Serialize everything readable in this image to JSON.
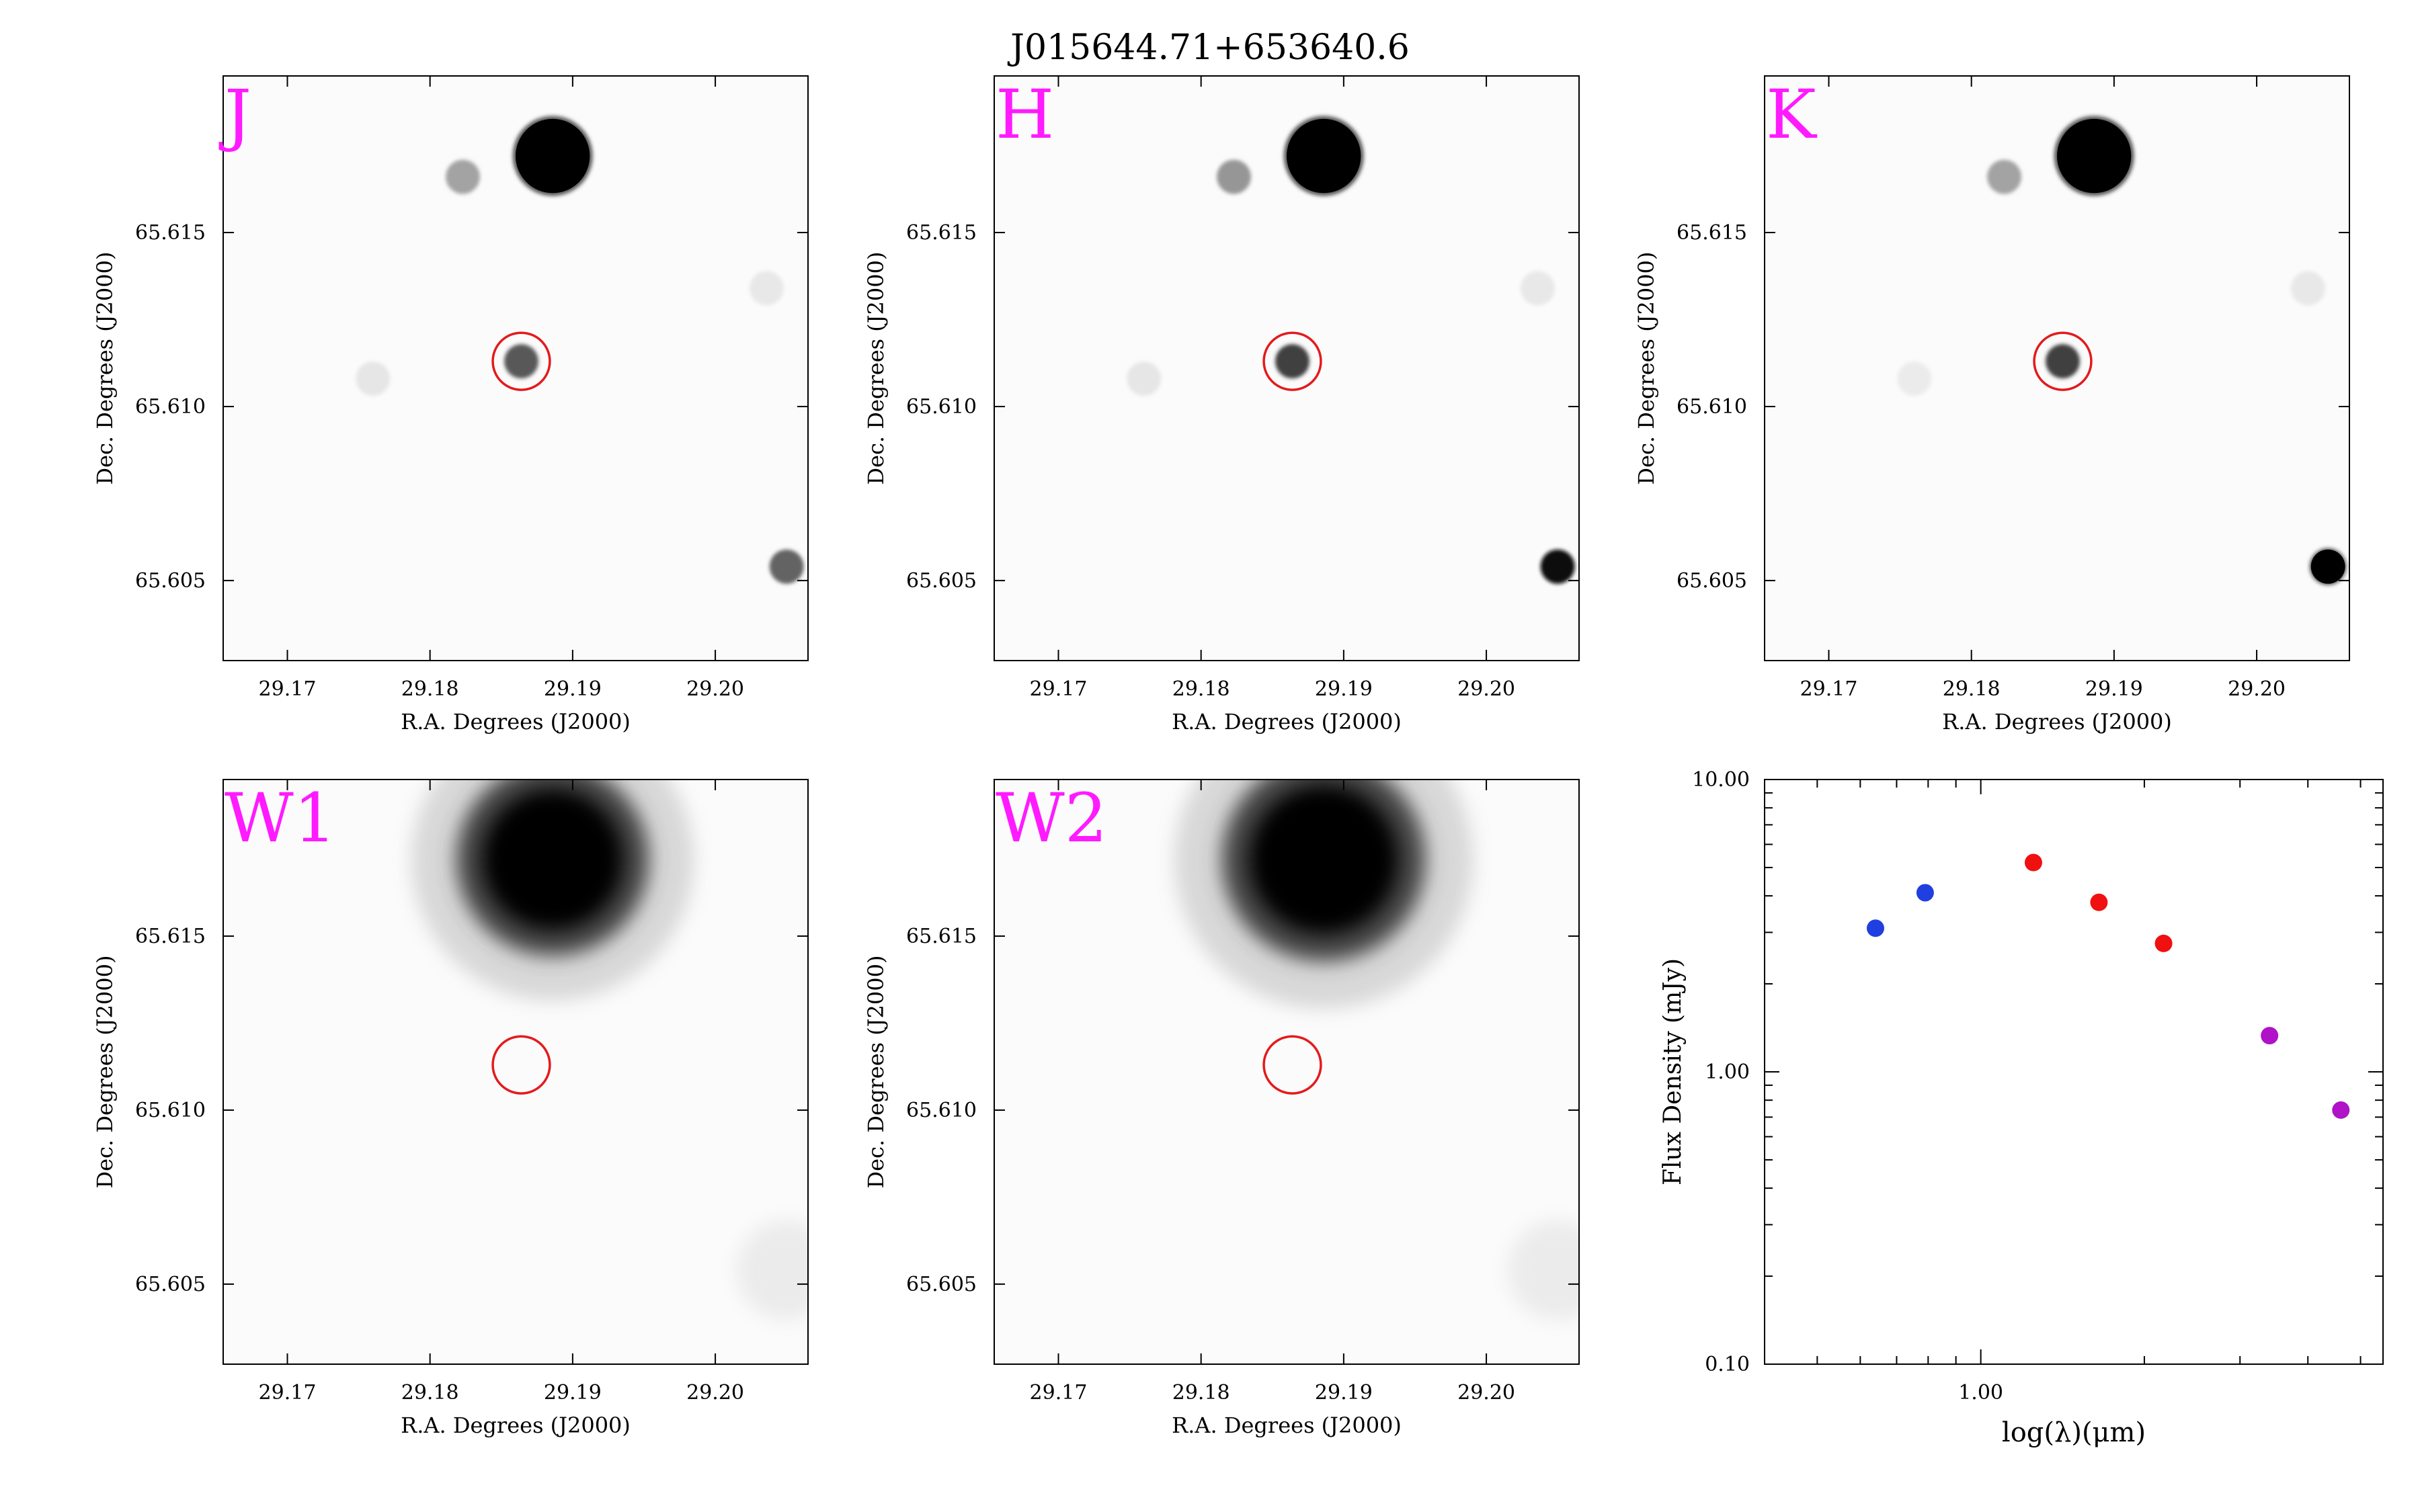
{
  "figure": {
    "title": "J015644.71+653640.6"
  },
  "colors": {
    "band_label": "#ff1aff",
    "circle": "#e41a1c",
    "sed_blue": "#1f3fe0",
    "sed_red": "#f01010",
    "sed_purple": "#b012c8"
  },
  "chart_data": [
    {
      "type": "heatmap",
      "band": "J",
      "xlabel": "R.A. Degrees (J2000)",
      "ylabel": "Dec. Degrees (J2000)",
      "xlim": [
        29.1655,
        29.2065
      ],
      "ylim": [
        65.6027,
        65.6195
      ],
      "xticks": [
        "29.17",
        "29.18",
        "29.19",
        "29.20"
      ],
      "yticks": [
        "65.605",
        "65.610",
        "65.615"
      ],
      "target": {
        "ra": 29.1864,
        "dec": 65.6113,
        "radius_deg": 0.002
      },
      "sources": [
        {
          "ra": 29.1886,
          "dec": 65.6172,
          "size": 0.0026,
          "intensity": 1.0
        },
        {
          "ra": 29.1823,
          "dec": 65.6166,
          "size": 0.0012,
          "intensity": 0.35
        },
        {
          "ra": 29.1864,
          "dec": 65.6113,
          "size": 0.0012,
          "intensity": 0.65
        },
        {
          "ra": 29.205,
          "dec": 65.6054,
          "size": 0.0012,
          "intensity": 0.6
        },
        {
          "ra": 29.176,
          "dec": 65.6108,
          "size": 0.0012,
          "intensity": 0.08
        },
        {
          "ra": 29.2036,
          "dec": 65.6134,
          "size": 0.0012,
          "intensity": 0.07
        }
      ]
    },
    {
      "type": "heatmap",
      "band": "H",
      "xlabel": "R.A. Degrees (J2000)",
      "ylabel": "Dec. Degrees (J2000)",
      "xlim": [
        29.1655,
        29.2065
      ],
      "ylim": [
        65.6027,
        65.6195
      ],
      "xticks": [
        "29.17",
        "29.18",
        "29.19",
        "29.20"
      ],
      "yticks": [
        "65.605",
        "65.610",
        "65.615"
      ],
      "target": {
        "ra": 29.1864,
        "dec": 65.6113,
        "radius_deg": 0.002
      },
      "sources": [
        {
          "ra": 29.1886,
          "dec": 65.6172,
          "size": 0.0026,
          "intensity": 1.0
        },
        {
          "ra": 29.1823,
          "dec": 65.6166,
          "size": 0.0012,
          "intensity": 0.4
        },
        {
          "ra": 29.1864,
          "dec": 65.6113,
          "size": 0.0012,
          "intensity": 0.75
        },
        {
          "ra": 29.205,
          "dec": 65.6054,
          "size": 0.0012,
          "intensity": 0.95
        },
        {
          "ra": 29.176,
          "dec": 65.6108,
          "size": 0.0012,
          "intensity": 0.08
        },
        {
          "ra": 29.2036,
          "dec": 65.6134,
          "size": 0.0012,
          "intensity": 0.07
        }
      ]
    },
    {
      "type": "heatmap",
      "band": "K",
      "xlabel": "R.A. Degrees (J2000)",
      "ylabel": "Dec. Degrees (J2000)",
      "xlim": [
        29.1655,
        29.2065
      ],
      "ylim": [
        65.6027,
        65.6195
      ],
      "xticks": [
        "29.17",
        "29.18",
        "29.19",
        "29.20"
      ],
      "yticks": [
        "65.605",
        "65.610",
        "65.615"
      ],
      "target": {
        "ra": 29.1864,
        "dec": 65.6113,
        "radius_deg": 0.002
      },
      "sources": [
        {
          "ra": 29.1886,
          "dec": 65.6172,
          "size": 0.0026,
          "intensity": 1.0
        },
        {
          "ra": 29.1823,
          "dec": 65.6166,
          "size": 0.0012,
          "intensity": 0.35
        },
        {
          "ra": 29.1864,
          "dec": 65.6113,
          "size": 0.0012,
          "intensity": 0.75
        },
        {
          "ra": 29.205,
          "dec": 65.6054,
          "size": 0.0012,
          "intensity": 1.0
        },
        {
          "ra": 29.176,
          "dec": 65.6108,
          "size": 0.0012,
          "intensity": 0.06
        },
        {
          "ra": 29.2036,
          "dec": 65.6134,
          "size": 0.0012,
          "intensity": 0.07
        }
      ]
    },
    {
      "type": "heatmap",
      "band": "W1",
      "xlabel": "R.A. Degrees (J2000)",
      "ylabel": "Dec. Degrees (J2000)",
      "xlim": [
        29.1655,
        29.2065
      ],
      "ylim": [
        65.6027,
        65.6195
      ],
      "xticks": [
        "29.17",
        "29.18",
        "29.19",
        "29.20"
      ],
      "yticks": [
        "65.605",
        "65.610",
        "65.615"
      ],
      "target": {
        "ra": 29.1864,
        "dec": 65.6113,
        "radius_deg": 0.002
      },
      "sources": [
        {
          "ra": 29.1886,
          "dec": 65.6172,
          "size": 0.0052,
          "intensity": 1.0
        },
        {
          "ra": 29.205,
          "dec": 65.6054,
          "size": 0.0035,
          "intensity": 0.06
        }
      ]
    },
    {
      "type": "heatmap",
      "band": "W2",
      "xlabel": "R.A. Degrees (J2000)",
      "ylabel": "Dec. Degrees (J2000)",
      "xlim": [
        29.1655,
        29.2065
      ],
      "ylim": [
        65.6027,
        65.6195
      ],
      "xticks": [
        "29.17",
        "29.18",
        "29.19",
        "29.20"
      ],
      "yticks": [
        "65.605",
        "65.610",
        "65.615"
      ],
      "target": {
        "ra": 29.1864,
        "dec": 65.6113,
        "radius_deg": 0.002
      },
      "sources": [
        {
          "ra": 29.1886,
          "dec": 65.6172,
          "size": 0.0055,
          "intensity": 1.0
        },
        {
          "ra": 29.205,
          "dec": 65.6054,
          "size": 0.0035,
          "intensity": 0.06
        }
      ]
    },
    {
      "type": "scatter",
      "xscale": "log",
      "yscale": "log",
      "xlabel": "log(λ)(μm)",
      "ylabel": "Flux Density (mJy)",
      "xlim": [
        0.4,
        5.5
      ],
      "ylim": [
        0.1,
        10.0
      ],
      "xticks": [
        "1.00"
      ],
      "yticks": [
        "0.10",
        "1.00",
        "10.00"
      ],
      "grid": false,
      "points": [
        {
          "x": 0.64,
          "y": 3.1,
          "color": "blue"
        },
        {
          "x": 0.79,
          "y": 4.1,
          "color": "blue"
        },
        {
          "x": 1.25,
          "y": 5.2,
          "color": "red"
        },
        {
          "x": 1.65,
          "y": 3.8,
          "color": "red"
        },
        {
          "x": 2.17,
          "y": 2.75,
          "color": "red"
        },
        {
          "x": 3.4,
          "y": 1.33,
          "color": "purple"
        },
        {
          "x": 4.6,
          "y": 0.74,
          "color": "purple"
        }
      ]
    }
  ]
}
